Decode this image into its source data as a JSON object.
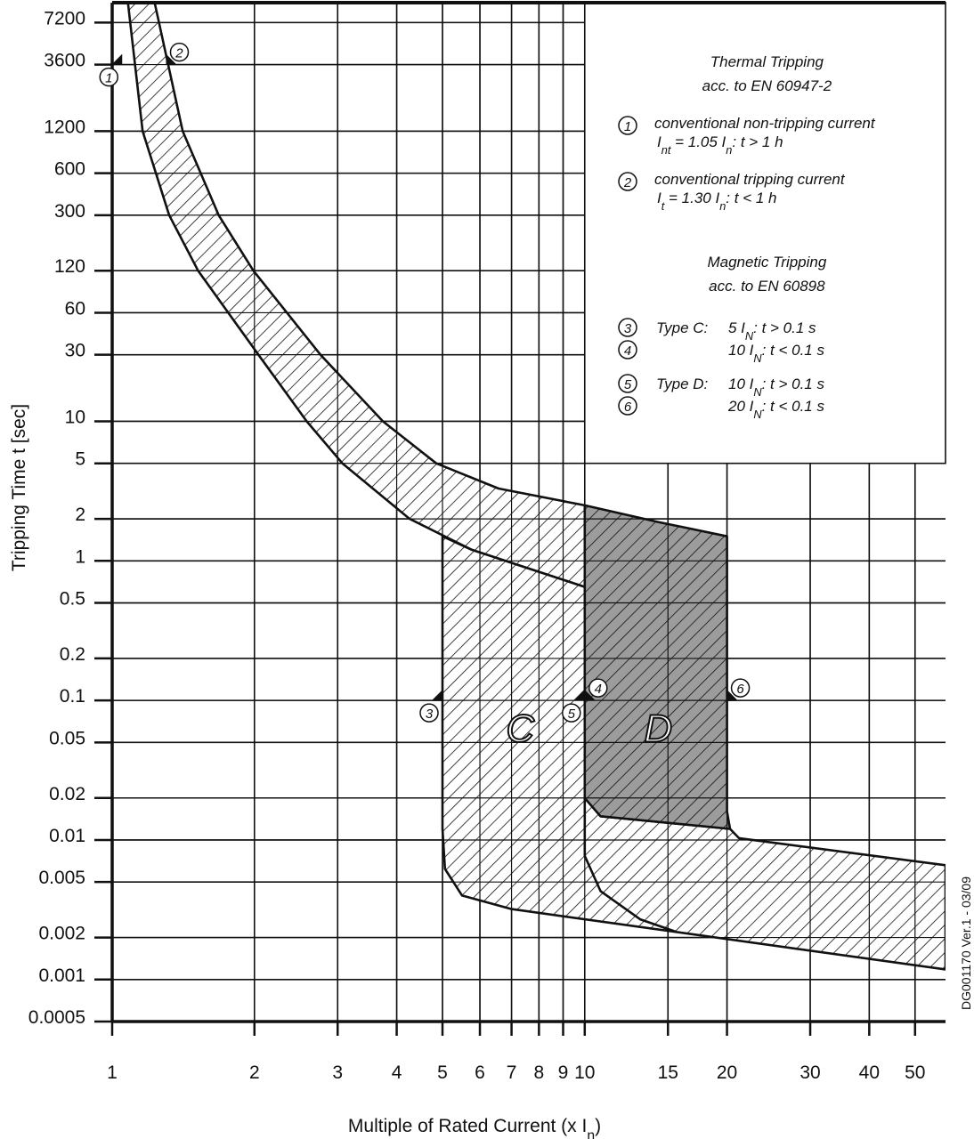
{
  "chart_data": {
    "type": "line",
    "log_x": true,
    "log_y": true,
    "grid": true,
    "xlabel": [
      {
        "text": "Multiple of Rated Current (x I"
      },
      {
        "text": "n",
        "sub": true
      },
      {
        "text": ")"
      }
    ],
    "ylabel": "Tripping Time t [sec]",
    "side_note": "DG001170 Ver.1 - 03/09",
    "xlim": [
      1,
      58
    ],
    "ylim": [
      0.0005,
      10000
    ],
    "xticks": [
      1,
      2,
      3,
      4,
      5,
      6,
      7,
      8,
      9,
      10,
      15,
      20,
      30,
      40,
      50
    ],
    "yticks": [
      7200,
      3600,
      1200,
      600,
      300,
      120,
      60,
      30,
      10,
      5,
      2,
      1,
      0.5,
      0.2,
      0.1,
      0.05,
      0.02,
      0.01,
      0.005,
      0.002,
      0.001,
      0.0005
    ],
    "series": [
      {
        "closed": true,
        "hatch": true,
        "color": "#ffffff",
        "x": [
          1.23,
          1.41,
          1.68,
          1.99,
          2.76,
          3.74,
          4.85,
          6.57,
          10,
          10,
          5.77,
          4.26,
          3.07,
          2.58,
          2.04,
          1.52,
          1.32,
          1.16,
          1.08
        ],
        "values": [
          10000,
          1200,
          300,
          120,
          30,
          10,
          5,
          3.3,
          2.5,
          0.65,
          1.2,
          2,
          5,
          10,
          30,
          120,
          300,
          1200,
          10000
        ]
      },
      {
        "closed": true,
        "hatch": true,
        "color": "#ffffff",
        "x": [
          5,
          5.77,
          10,
          10,
          10.8,
          20.3,
          21.2,
          58,
          58,
          7,
          5.5,
          5.06,
          5
        ],
        "values": [
          1.5,
          1.2,
          0.65,
          0.02,
          0.0148,
          0.012,
          0.0103,
          0.0066,
          0.00118,
          0.0032,
          0.004,
          0.0062,
          0.012
        ]
      },
      {
        "closed": true,
        "hatch": true,
        "color": "#9c9c9c",
        "x": [
          10,
          14.3,
          20,
          20,
          20.3,
          10.8,
          10
        ],
        "values": [
          2.5,
          1.9,
          1.5,
          0.016,
          0.012,
          0.0148,
          0.02
        ]
      },
      {
        "closed": false,
        "hatch": false,
        "color": "#ffffff",
        "x": [
          10,
          10,
          10.8,
          13.1,
          15.6
        ],
        "values": [
          0.02,
          0.0077,
          0.0043,
          0.0027,
          0.0022
        ]
      }
    ],
    "region_labels": [
      {
        "text": "C",
        "x": 7.3,
        "y": 0.068
      },
      {
        "text": "D",
        "x": 14.3,
        "y": 0.068
      }
    ],
    "markers": [
      {
        "label": "1",
        "x": 1.05,
        "y": 3600,
        "side": "left"
      },
      {
        "label": "2",
        "x": 1.3,
        "y": 3600,
        "side": "right"
      },
      {
        "label": "3",
        "x": 5,
        "y": 0.1,
        "side": "left"
      },
      {
        "label": "4",
        "x": 10,
        "y": 0.1,
        "side": "right"
      },
      {
        "label": "5",
        "x": 10,
        "y": 0.1,
        "side": "left"
      },
      {
        "label": "6",
        "x": 20,
        "y": 0.1,
        "side": "right"
      }
    ],
    "notes": {
      "thermal_title": "Thermal Tripping",
      "thermal_standard": "acc. to EN 60947-2",
      "thermal_items": [
        {
          "marker": "1",
          "description": "conventional non-tripping current",
          "formula": [
            {
              "text": "I"
            },
            {
              "text": "nt",
              "sub": true
            },
            {
              "text": " = 1.05 I"
            },
            {
              "text": "n",
              "sub": true
            },
            {
              "text": ": t > 1 h"
            }
          ]
        },
        {
          "marker": "2",
          "description": "conventional tripping current",
          "formula": [
            {
              "text": "I"
            },
            {
              "text": "t",
              "sub": true
            },
            {
              "text": " = 1.30 I"
            },
            {
              "text": "n",
              "sub": true
            },
            {
              "text": ": t < 1 h"
            }
          ]
        }
      ],
      "magnetic_title": "Magnetic Tripping",
      "magnetic_standard": "acc. to EN 60898",
      "magnetic_items": [
        {
          "marker": "3",
          "type": "Type C:",
          "formula": [
            {
              "text": "5 I"
            },
            {
              "text": "N",
              "sub": true
            },
            {
              "text": ": t > 0.1 s"
            }
          ]
        },
        {
          "marker": "4",
          "formula": [
            {
              "text": "10 I"
            },
            {
              "text": "N",
              "sub": true
            },
            {
              "text": ": t < 0.1 s"
            }
          ]
        },
        {
          "marker": "5",
          "type": "Type D:",
          "formula": [
            {
              "text": "10 I"
            },
            {
              "text": "N",
              "sub": true
            },
            {
              "text": ": t > 0.1 s"
            }
          ]
        },
        {
          "marker": "6",
          "formula": [
            {
              "text": "20 I"
            },
            {
              "text": "N",
              "sub": true
            },
            {
              "text": ": t < 0.1 s"
            }
          ]
        }
      ]
    }
  }
}
